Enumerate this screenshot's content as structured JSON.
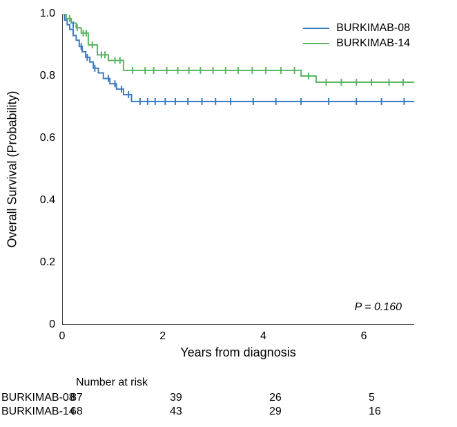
{
  "chart": {
    "type": "kaplan-meier",
    "ylabel": "Overall Survival (Probability)",
    "xlabel": "Years from diagnosis",
    "label_fontsize": 18,
    "tick_fontsize": 16,
    "xlim": [
      0,
      7
    ],
    "ylim": [
      0,
      1.0
    ],
    "xticks": [
      0,
      2,
      4,
      6
    ],
    "yticks": [
      0,
      0.2,
      0.4,
      0.6,
      0.8,
      1.0
    ],
    "ytick_labels": [
      "0",
      "0.2",
      "0.4",
      "0.6",
      "0.8",
      "1.0"
    ],
    "xtick_labels": [
      "0",
      "2",
      "4",
      "6"
    ],
    "background_color": "#ffffff",
    "axis_color": "#000000",
    "p_value": "P = 0.160",
    "series": [
      {
        "name": "BURKIMAB-08",
        "color": "#3b7bbf",
        "steps": [
          [
            0.0,
            1.0
          ],
          [
            0.05,
            1.0
          ],
          [
            0.05,
            0.98
          ],
          [
            0.1,
            0.98
          ],
          [
            0.1,
            0.965
          ],
          [
            0.15,
            0.965
          ],
          [
            0.15,
            0.95
          ],
          [
            0.22,
            0.95
          ],
          [
            0.22,
            0.93
          ],
          [
            0.28,
            0.93
          ],
          [
            0.28,
            0.915
          ],
          [
            0.34,
            0.915
          ],
          [
            0.34,
            0.895
          ],
          [
            0.4,
            0.895
          ],
          [
            0.4,
            0.878
          ],
          [
            0.47,
            0.878
          ],
          [
            0.47,
            0.86
          ],
          [
            0.55,
            0.86
          ],
          [
            0.55,
            0.845
          ],
          [
            0.62,
            0.845
          ],
          [
            0.62,
            0.825
          ],
          [
            0.72,
            0.825
          ],
          [
            0.72,
            0.81
          ],
          [
            0.82,
            0.81
          ],
          [
            0.82,
            0.792
          ],
          [
            0.95,
            0.792
          ],
          [
            0.95,
            0.775
          ],
          [
            1.08,
            0.775
          ],
          [
            1.08,
            0.758
          ],
          [
            1.22,
            0.758
          ],
          [
            1.22,
            0.74
          ],
          [
            1.38,
            0.74
          ],
          [
            1.38,
            0.718
          ],
          [
            7.0,
            0.718
          ]
        ],
        "censor_marks": [
          [
            0.22,
            0.965
          ],
          [
            0.38,
            0.895
          ],
          [
            0.5,
            0.86
          ],
          [
            0.65,
            0.825
          ],
          [
            0.92,
            0.792
          ],
          [
            1.05,
            0.775
          ],
          [
            1.18,
            0.758
          ],
          [
            1.32,
            0.74
          ],
          [
            1.55,
            0.718
          ],
          [
            1.7,
            0.718
          ],
          [
            1.85,
            0.718
          ],
          [
            2.05,
            0.718
          ],
          [
            2.25,
            0.718
          ],
          [
            2.5,
            0.718
          ],
          [
            2.78,
            0.718
          ],
          [
            3.05,
            0.718
          ],
          [
            3.35,
            0.718
          ],
          [
            3.8,
            0.718
          ],
          [
            4.25,
            0.718
          ],
          [
            4.75,
            0.718
          ],
          [
            5.3,
            0.718
          ],
          [
            5.85,
            0.718
          ],
          [
            6.35,
            0.718
          ],
          [
            6.8,
            0.718
          ]
        ]
      },
      {
        "name": "BURKIMAB-14",
        "color": "#5bb461",
        "steps": [
          [
            0.0,
            1.0
          ],
          [
            0.08,
            1.0
          ],
          [
            0.08,
            0.985
          ],
          [
            0.18,
            0.985
          ],
          [
            0.18,
            0.97
          ],
          [
            0.28,
            0.97
          ],
          [
            0.28,
            0.955
          ],
          [
            0.38,
            0.955
          ],
          [
            0.38,
            0.938
          ],
          [
            0.52,
            0.938
          ],
          [
            0.52,
            0.9
          ],
          [
            0.7,
            0.9
          ],
          [
            0.7,
            0.868
          ],
          [
            0.92,
            0.868
          ],
          [
            0.92,
            0.85
          ],
          [
            1.22,
            0.85
          ],
          [
            1.22,
            0.818
          ],
          [
            4.75,
            0.818
          ],
          [
            4.75,
            0.8
          ],
          [
            5.05,
            0.8
          ],
          [
            5.05,
            0.78
          ],
          [
            7.0,
            0.78
          ]
        ],
        "censor_marks": [
          [
            0.15,
            0.985
          ],
          [
            0.3,
            0.955
          ],
          [
            0.42,
            0.938
          ],
          [
            0.48,
            0.938
          ],
          [
            0.6,
            0.9
          ],
          [
            0.78,
            0.868
          ],
          [
            0.85,
            0.868
          ],
          [
            1.05,
            0.85
          ],
          [
            1.15,
            0.85
          ],
          [
            1.4,
            0.818
          ],
          [
            1.65,
            0.818
          ],
          [
            1.82,
            0.818
          ],
          [
            2.08,
            0.818
          ],
          [
            2.3,
            0.818
          ],
          [
            2.52,
            0.818
          ],
          [
            2.75,
            0.818
          ],
          [
            3.0,
            0.818
          ],
          [
            3.25,
            0.818
          ],
          [
            3.5,
            0.818
          ],
          [
            3.78,
            0.818
          ],
          [
            4.05,
            0.818
          ],
          [
            4.35,
            0.818
          ],
          [
            4.62,
            0.818
          ],
          [
            4.9,
            0.8
          ],
          [
            5.25,
            0.78
          ],
          [
            5.55,
            0.78
          ],
          [
            5.85,
            0.78
          ],
          [
            6.15,
            0.78
          ],
          [
            6.5,
            0.78
          ],
          [
            6.78,
            0.78
          ]
        ]
      }
    ],
    "legend": {
      "position": "top-right",
      "items": [
        "BURKIMAB-08",
        "BURKIMAB-14"
      ]
    }
  },
  "risk_table": {
    "title": "Number at risk",
    "x_positions": [
      0,
      2,
      4,
      6
    ],
    "rows": [
      {
        "label": "BURKIMAB-08",
        "values": [
          "87",
          "39",
          "26",
          "5"
        ]
      },
      {
        "label": "BURKIMAB-14",
        "values": [
          "68",
          "43",
          "29",
          "16"
        ]
      }
    ]
  }
}
